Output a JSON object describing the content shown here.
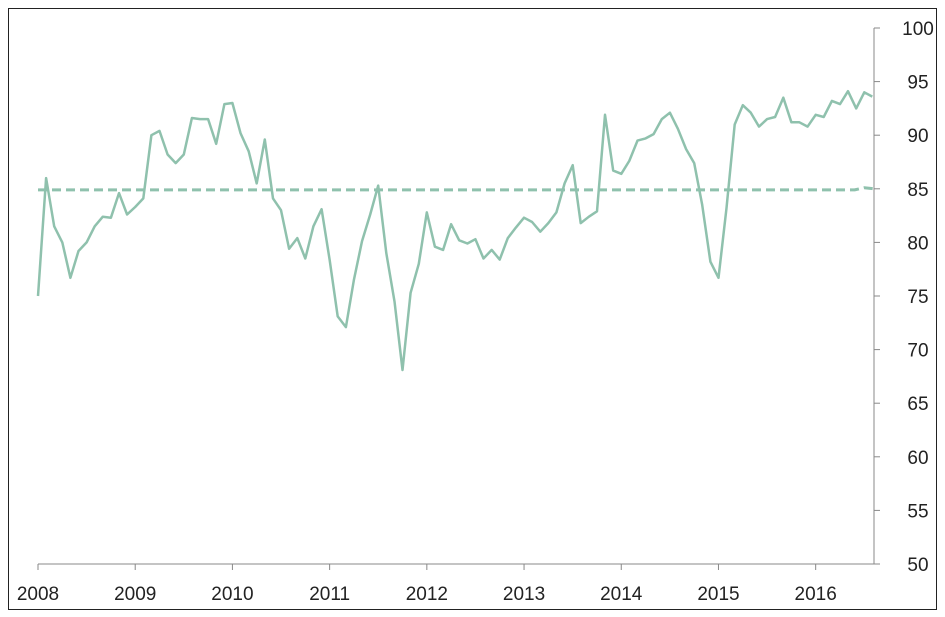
{
  "chart_data": {
    "type": "line",
    "title": "",
    "xlabel": "",
    "ylabel": "",
    "x_ticks": [
      "2008",
      "2009",
      "2010",
      "2011",
      "2012",
      "2013",
      "2014",
      "2015",
      "2016"
    ],
    "y_ticks": [
      "100",
      "95",
      "90",
      "85",
      "80",
      "75",
      "70",
      "65",
      "60",
      "55",
      "50"
    ],
    "ylim": [
      50,
      100
    ],
    "xlim": [
      2008.0,
      2016.6
    ],
    "y_axis_position": "right",
    "grid": false,
    "legend": "none",
    "colors": {
      "series": "#8fc1ad",
      "axis": "#888888",
      "text": "#222222"
    },
    "series": [
      {
        "style": "solid",
        "x": [
          2008.0,
          2008.083,
          2008.167,
          2008.25,
          2008.333,
          2008.417,
          2008.5,
          2008.583,
          2008.667,
          2008.75,
          2008.833,
          2008.917,
          2009.0,
          2009.083,
          2009.167,
          2009.25,
          2009.333,
          2009.417,
          2009.5,
          2009.583,
          2009.667,
          2009.75,
          2009.833,
          2009.917,
          2010.0,
          2010.083,
          2010.167,
          2010.25,
          2010.333,
          2010.417,
          2010.5,
          2010.583,
          2010.667,
          2010.75,
          2010.833,
          2010.917,
          2011.0,
          2011.083,
          2011.167,
          2011.25,
          2011.333,
          2011.417,
          2011.5,
          2011.583,
          2011.667,
          2011.75,
          2011.833,
          2011.917,
          2012.0,
          2012.083,
          2012.167,
          2012.25,
          2012.333,
          2012.417,
          2012.5,
          2012.583,
          2012.667,
          2012.75,
          2012.833,
          2012.917,
          2013.0,
          2013.083,
          2013.167,
          2013.25,
          2013.333,
          2013.417,
          2013.5,
          2013.583,
          2013.667,
          2013.75,
          2013.833,
          2013.917,
          2014.0,
          2014.083,
          2014.167,
          2014.25,
          2014.333,
          2014.417,
          2014.5,
          2014.583,
          2014.667,
          2014.75,
          2014.833,
          2014.917,
          2015.0,
          2015.083,
          2015.167,
          2015.25,
          2015.333,
          2015.417,
          2015.5,
          2015.583,
          2015.667,
          2015.75,
          2015.833,
          2015.917,
          2016.0,
          2016.083,
          2016.167,
          2016.25,
          2016.333,
          2016.417,
          2016.5,
          2016.583
        ],
        "values": [
          75.0,
          86.0,
          81.5,
          80.0,
          76.7,
          79.2,
          80.0,
          81.5,
          82.4,
          82.3,
          84.6,
          82.6,
          83.3,
          84.1,
          90.0,
          90.4,
          88.2,
          87.4,
          88.2,
          91.6,
          91.5,
          91.5,
          89.2,
          92.9,
          93.0,
          90.2,
          88.5,
          85.5,
          89.6,
          84.1,
          83.0,
          79.4,
          80.4,
          78.5,
          81.5,
          83.1,
          78.4,
          73.1,
          72.1,
          76.5,
          80.1,
          82.6,
          85.3,
          79.0,
          74.5,
          68.1,
          75.3,
          78.0,
          82.8,
          79.6,
          79.3,
          81.7,
          80.2,
          79.9,
          80.3,
          78.5,
          79.3,
          78.4,
          80.4,
          81.4,
          82.3,
          81.9,
          81.0,
          81.8,
          82.8,
          85.5,
          87.2,
          81.8,
          82.4,
          82.9,
          91.9,
          86.7,
          86.4,
          87.6,
          89.5,
          89.7,
          90.1,
          91.5,
          92.1,
          90.6,
          88.7,
          87.4,
          83.5,
          78.2,
          76.7,
          83.2,
          91.0,
          92.8,
          92.1,
          90.8,
          91.5,
          91.7,
          93.5,
          91.2,
          91.2,
          90.8,
          91.9,
          91.7,
          93.2,
          92.9,
          94.1,
          92.5,
          94.0,
          93.6
        ]
      },
      {
        "style": "dashed",
        "x": [
          2008.0,
          2016.4,
          2016.5,
          2016.6
        ],
        "values": [
          84.9,
          84.9,
          85.1,
          85.0
        ]
      }
    ]
  }
}
